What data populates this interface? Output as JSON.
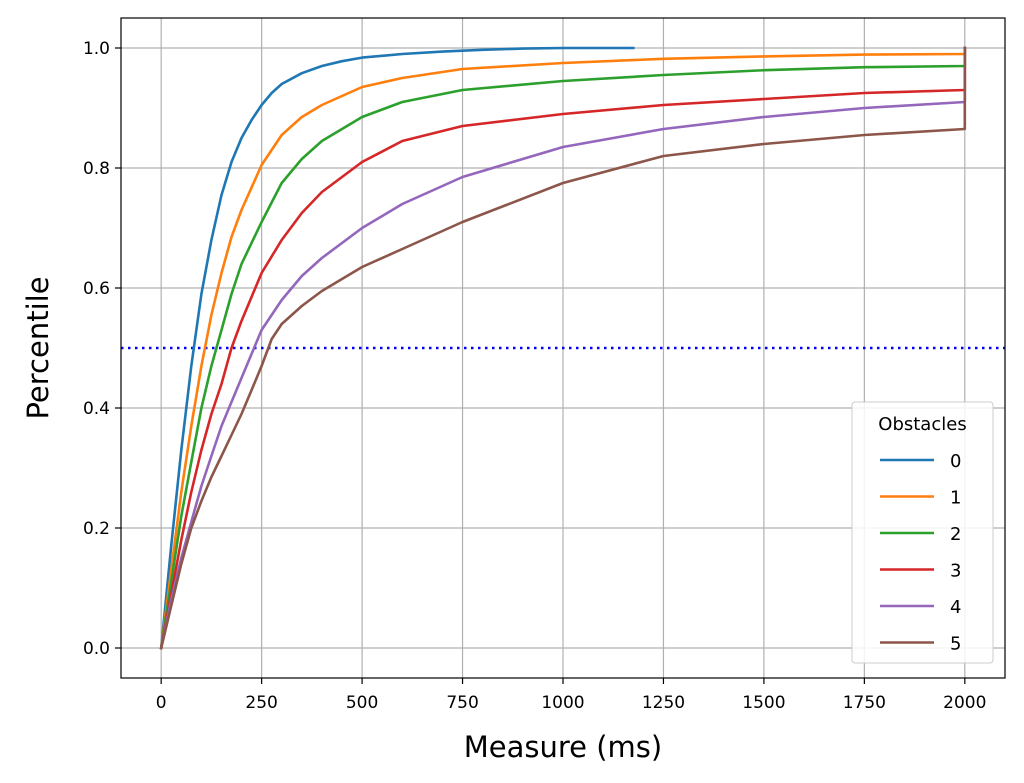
{
  "chart_data": {
    "type": "line",
    "title": "",
    "xlabel": "Measure (ms)",
    "ylabel": "Percentile",
    "xlim": [
      -100,
      2100
    ],
    "ylim": [
      -0.05,
      1.05
    ],
    "xticks": [
      0,
      250,
      500,
      750,
      1000,
      1250,
      1500,
      1750,
      2000
    ],
    "yticks": [
      0.0,
      0.2,
      0.4,
      0.6,
      0.8,
      1.0
    ],
    "grid": true,
    "legend": {
      "title": "Obstacles",
      "placement": "lower right"
    },
    "reference_lines": [
      {
        "orientation": "horizontal",
        "y": 0.5,
        "style": "dotted",
        "color": "#0000ff"
      }
    ],
    "series": [
      {
        "name": "0",
        "color": "#1f77b4",
        "x": [
          0,
          25,
          50,
          75,
          100,
          125,
          150,
          175,
          200,
          225,
          250,
          275,
          300,
          350,
          400,
          450,
          500,
          600,
          700,
          800,
          900,
          1000,
          1175
        ],
        "y": [
          0,
          0.17,
          0.33,
          0.47,
          0.59,
          0.68,
          0.755,
          0.81,
          0.85,
          0.88,
          0.905,
          0.925,
          0.94,
          0.958,
          0.97,
          0.978,
          0.984,
          0.99,
          0.994,
          0.997,
          0.999,
          1.0,
          1.0
        ]
      },
      {
        "name": "1",
        "color": "#ff7f0e",
        "x": [
          0,
          25,
          50,
          75,
          100,
          125,
          150,
          175,
          200,
          250,
          300,
          350,
          400,
          500,
          600,
          750,
          1000,
          1250,
          1500,
          1750,
          2000,
          2000
        ],
        "y": [
          0,
          0.13,
          0.26,
          0.37,
          0.47,
          0.555,
          0.625,
          0.685,
          0.73,
          0.805,
          0.855,
          0.885,
          0.905,
          0.935,
          0.95,
          0.965,
          0.975,
          0.982,
          0.986,
          0.989,
          0.99,
          1.0
        ]
      },
      {
        "name": "2",
        "color": "#2ca02c",
        "x": [
          0,
          25,
          50,
          75,
          100,
          125,
          150,
          175,
          200,
          250,
          300,
          350,
          400,
          500,
          600,
          750,
          1000,
          1250,
          1500,
          1750,
          2000,
          2000
        ],
        "y": [
          0,
          0.11,
          0.22,
          0.31,
          0.4,
          0.47,
          0.53,
          0.59,
          0.64,
          0.71,
          0.775,
          0.815,
          0.845,
          0.885,
          0.91,
          0.93,
          0.945,
          0.955,
          0.963,
          0.968,
          0.97,
          1.0
        ]
      },
      {
        "name": "3",
        "color": "#d62728",
        "x": [
          0,
          25,
          50,
          75,
          100,
          125,
          150,
          175,
          200,
          250,
          300,
          350,
          400,
          500,
          600,
          750,
          1000,
          1250,
          1500,
          1750,
          2000,
          2000
        ],
        "y": [
          0,
          0.09,
          0.18,
          0.26,
          0.33,
          0.39,
          0.44,
          0.5,
          0.545,
          0.625,
          0.68,
          0.725,
          0.76,
          0.81,
          0.845,
          0.87,
          0.89,
          0.905,
          0.915,
          0.925,
          0.93,
          1.0
        ]
      },
      {
        "name": "4",
        "color": "#9467bd",
        "x": [
          0,
          25,
          50,
          75,
          100,
          125,
          150,
          175,
          200,
          250,
          300,
          350,
          400,
          500,
          600,
          750,
          1000,
          1250,
          1500,
          1750,
          2000,
          2000
        ],
        "y": [
          0,
          0.08,
          0.15,
          0.21,
          0.27,
          0.32,
          0.37,
          0.41,
          0.45,
          0.53,
          0.58,
          0.62,
          0.65,
          0.7,
          0.74,
          0.785,
          0.835,
          0.865,
          0.885,
          0.9,
          0.91,
          1.0
        ]
      },
      {
        "name": "5",
        "color": "#8c564b",
        "x": [
          0,
          25,
          50,
          75,
          100,
          125,
          150,
          175,
          200,
          225,
          250,
          275,
          300,
          350,
          400,
          500,
          600,
          750,
          1000,
          1250,
          1500,
          1750,
          2000,
          2000
        ],
        "y": [
          0,
          0.07,
          0.14,
          0.2,
          0.245,
          0.285,
          0.32,
          0.355,
          0.39,
          0.43,
          0.47,
          0.515,
          0.54,
          0.57,
          0.595,
          0.635,
          0.665,
          0.71,
          0.775,
          0.82,
          0.84,
          0.855,
          0.865,
          1.0
        ]
      }
    ]
  }
}
